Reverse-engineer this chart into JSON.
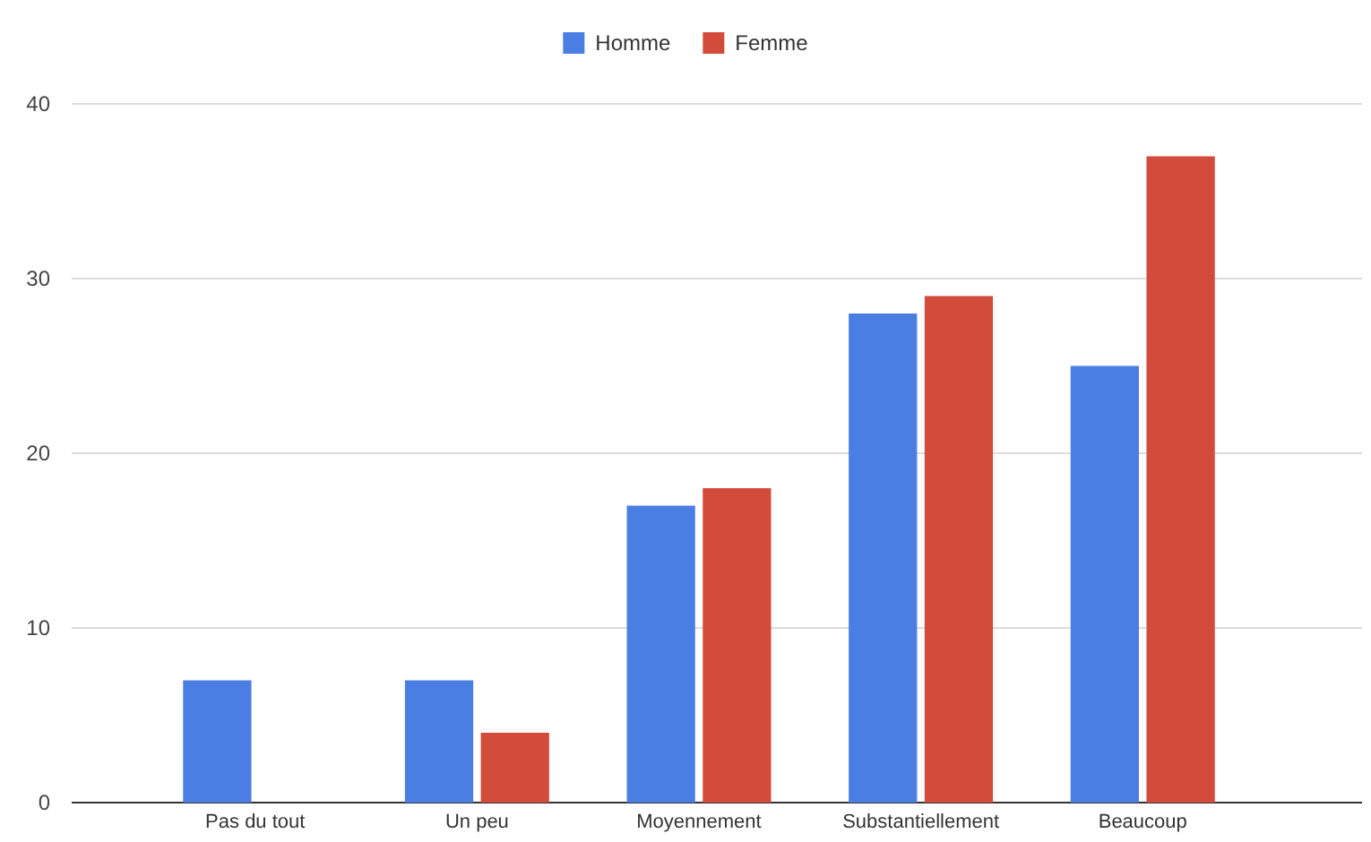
{
  "chart_data": {
    "type": "bar",
    "categories": [
      "Pas du tout",
      "Un peu",
      "Moyennement",
      "Substantiellement",
      "Beaucoup"
    ],
    "series": [
      {
        "name": "Homme",
        "color": "#4a7ee3",
        "values": [
          7,
          7,
          17,
          28,
          25
        ]
      },
      {
        "name": "Femme",
        "color": "#d34b3b",
        "values": [
          0,
          4,
          18,
          29,
          37
        ]
      }
    ],
    "ylim": [
      0,
      40
    ],
    "yticks": [
      0,
      10,
      20,
      30,
      40
    ],
    "grid": "y",
    "legend": "top"
  }
}
